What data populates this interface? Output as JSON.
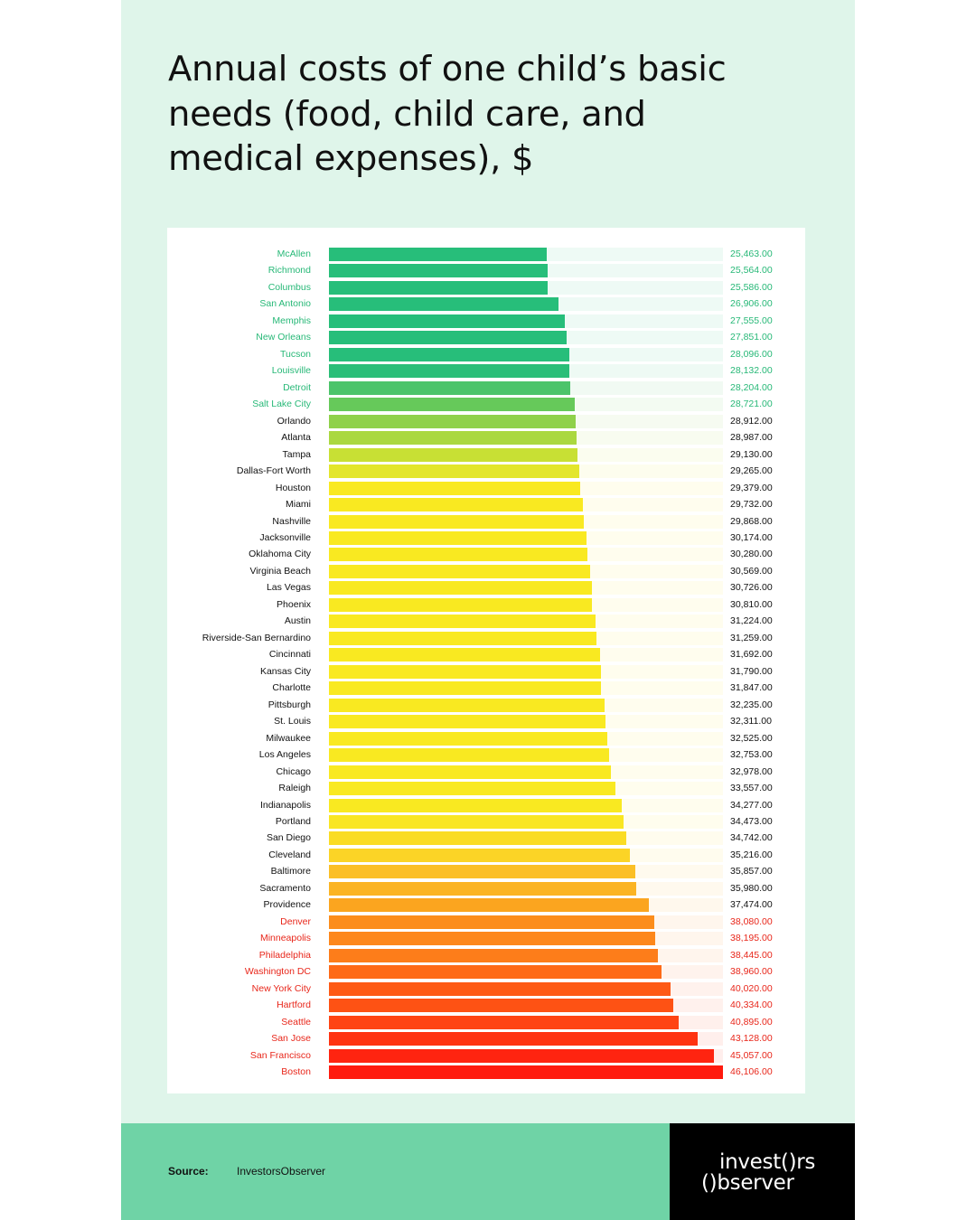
{
  "chart_data": {
    "type": "bar",
    "orientation": "horizontal",
    "title": "Annual costs of one child’s basic needs (food, child care, and medical expenses), $",
    "xlim": [
      0,
      46106
    ],
    "categories": [
      "McAllen",
      "Richmond",
      "Columbus",
      "San Antonio",
      "Memphis",
      "New Orleans",
      "Tucson",
      "Louisville",
      "Detroit",
      "Salt Lake City",
      "Orlando",
      "Atlanta",
      "Tampa",
      "Dallas-Fort Worth",
      "Houston",
      "Miami",
      "Nashville",
      "Jacksonville",
      "Oklahoma City",
      "Virginia Beach",
      "Las Vegas",
      "Phoenix",
      "Austin",
      "Riverside-San Bernardino",
      "Cincinnati",
      "Kansas City",
      "Charlotte",
      "Pittsburgh",
      "St. Louis",
      "Milwaukee",
      "Los Angeles",
      "Chicago",
      "Raleigh",
      "Indianapolis",
      "Portland",
      "San Diego",
      "Cleveland",
      "Baltimore",
      "Sacramento",
      "Providence",
      "Denver",
      "Minneapolis",
      "Philadelphia",
      "Washington DC",
      "New York City",
      "Hartford",
      "Seattle",
      "San Jose",
      "San Francisco",
      "Boston"
    ],
    "values": [
      25463,
      25564,
      25586,
      26906,
      27555,
      27851,
      28096,
      28132,
      28204,
      28721,
      28912,
      28987,
      29130,
      29265,
      29379,
      29732,
      29868,
      30174,
      30280,
      30569,
      30726,
      30810,
      31224,
      31259,
      31692,
      31790,
      31847,
      32235,
      32311,
      32525,
      32753,
      32978,
      33557,
      34277,
      34473,
      34742,
      35216,
      35857,
      35980,
      37474,
      38080,
      38195,
      38445,
      38960,
      40020,
      40334,
      40895,
      43128,
      45057,
      46106
    ],
    "value_labels": [
      "25,463.00",
      "25,564.00",
      "25,586.00",
      "26,906.00",
      "27,555.00",
      "27,851.00",
      "28,096.00",
      "28,132.00",
      "28,204.00",
      "28,721.00",
      "28,912.00",
      "28,987.00",
      "29,130.00",
      "29,265.00",
      "29,379.00",
      "29,732.00",
      "29,868.00",
      "30,174.00",
      "30,280.00",
      "30,569.00",
      "30,726.00",
      "30,810.00",
      "31,224.00",
      "31,259.00",
      "31,692.00",
      "31,790.00",
      "31,847.00",
      "32,235.00",
      "32,311.00",
      "32,525.00",
      "32,753.00",
      "32,978.00",
      "33,557.00",
      "34,277.00",
      "34,473.00",
      "34,742.00",
      "35,216.00",
      "35,857.00",
      "35,980.00",
      "37,474.00",
      "38,080.00",
      "38,195.00",
      "38,445.00",
      "38,960.00",
      "40,020.00",
      "40,334.00",
      "40,895.00",
      "43,128.00",
      "45,057.00",
      "46,106.00"
    ],
    "bar_colors": [
      "#27be7a",
      "#27be7a",
      "#27be7a",
      "#27be7a",
      "#27be7a",
      "#27be7a",
      "#27be7a",
      "#2abe78",
      "#4cc46a",
      "#66c95a",
      "#8fd14a",
      "#aad840",
      "#c8e034",
      "#e3e62c",
      "#f9e921",
      "#f9e921",
      "#f9e921",
      "#f9e921",
      "#f9e921",
      "#f9e921",
      "#f9e921",
      "#f9e921",
      "#f9e921",
      "#f9e921",
      "#f9e921",
      "#f9e921",
      "#f9e921",
      "#f9e921",
      "#f9e921",
      "#f9e921",
      "#f9e921",
      "#f9e921",
      "#f9e921",
      "#f9e921",
      "#f9e623",
      "#fadc24",
      "#fbd426",
      "#fbbf26",
      "#fbb424",
      "#fba51f",
      "#fc8d1c",
      "#fd871b",
      "#fd7d1a",
      "#fe6a17",
      "#fe5a15",
      "#fe5214",
      "#ff4413",
      "#ff3311",
      "#ff2410",
      "#ff1a0e"
    ],
    "label_colors": {
      "low": "#27b877",
      "mid": "#111111",
      "high": "#e8261a"
    },
    "low_count": 10,
    "high_count": 10
  },
  "footer": {
    "source_label": "Source:",
    "source_value": "InvestorsObserver"
  },
  "logo": {
    "line1": "invest()rs",
    "line2": "()bserver"
  },
  "colors": {
    "background": "#dff5ea",
    "footer": "#6fd3a6",
    "logo_bg": "#000000"
  }
}
